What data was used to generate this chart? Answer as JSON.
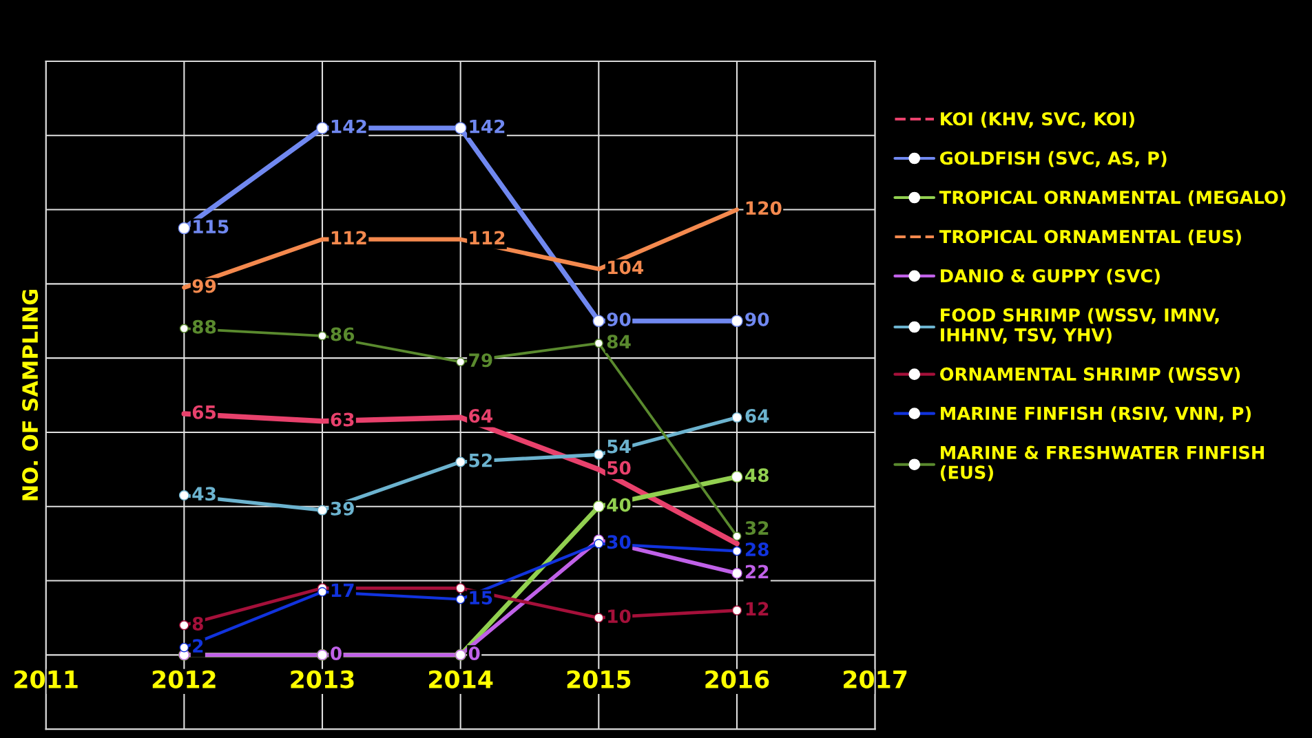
{
  "chart_data": {
    "type": "line",
    "ylabel": "NO. OF SAMPLING",
    "x": [
      2012,
      2013,
      2014,
      2015,
      2016
    ],
    "xlim": [
      2011,
      2017
    ],
    "xticks": [
      2011,
      2012,
      2013,
      2014,
      2015,
      2016,
      2017
    ],
    "ylim": [
      -20,
      160
    ],
    "yticks": [
      {
        "value": -20,
        "label": null
      },
      {
        "value": 0,
        "label": null
      },
      {
        "value": 20,
        "label": null
      },
      {
        "value": 40,
        "label": null
      },
      {
        "value": 60,
        "label": null
      },
      {
        "value": 80,
        "label": null
      },
      {
        "value": 100,
        "label": null
      },
      {
        "value": 120,
        "label": null
      },
      {
        "value": 140,
        "label": null
      },
      {
        "value": 160,
        "label": null
      }
    ],
    "tick_labels": "x",
    "grid": true,
    "legend": "right",
    "series": [
      {
        "name": "KOI (KHV, SVC, KOI)",
        "color": "#e8416c",
        "marker": "none",
        "values": [
          65,
          63,
          64,
          50,
          30
        ],
        "value_labels": [
          "65",
          "63",
          "64",
          "50",
          null
        ]
      },
      {
        "name": "GOLDFISH (SVC, AS, P)",
        "color": "#7088f0",
        "marker": "circle",
        "values": [
          115,
          142,
          142,
          90,
          90
        ],
        "value_labels": [
          "115",
          "142",
          "142",
          "90",
          "90"
        ]
      },
      {
        "name": "TROPICAL ORNAMENTAL (MEGALO)",
        "color": "#92d050",
        "marker": "circle",
        "values": [
          0,
          0,
          0,
          40,
          48
        ],
        "value_labels": [
          null,
          null,
          null,
          "40",
          "48"
        ]
      },
      {
        "name": "TROPICAL ORNAMENTAL (EUS)",
        "color": "#f4894e",
        "marker": "none",
        "values": [
          99,
          112,
          112,
          104,
          120
        ],
        "value_labels": [
          "99",
          "112",
          "112",
          "104",
          "120"
        ]
      },
      {
        "name": "DANIO & GUPPY (SVC)",
        "color": "#c061e8",
        "marker": "circle",
        "values": [
          0,
          0,
          0,
          31,
          22
        ],
        "value_labels": [
          null,
          "0",
          "0",
          null,
          "22"
        ]
      },
      {
        "name": "FOOD SHRIMP (WSSV, IMNV,\nIHHNV, TSV, YHV)",
        "color": "#6cb3cf",
        "marker": "circle",
        "values": [
          43,
          39,
          52,
          54,
          64
        ],
        "value_labels": [
          "43",
          "39",
          "52",
          "54",
          "64"
        ]
      },
      {
        "name": "ORNAMENTAL SHRIMP (WSSV)",
        "color": "#a5103a",
        "marker": "circle",
        "values": [
          8,
          18,
          18,
          10,
          12
        ],
        "value_labels": [
          "8",
          null,
          null,
          "10",
          "12"
        ]
      },
      {
        "name": "MARINE FINFISH (RSIV, VNN, P)",
        "color": "#1133dd",
        "marker": "circle",
        "values": [
          2,
          17,
          15,
          30,
          28
        ],
        "value_labels": [
          "2",
          "17",
          "15",
          "30",
          "28"
        ]
      },
      {
        "name": "MARINE & FRESHWATER FINFISH\n(EUS)",
        "color": "#5a8a2e",
        "marker": "circle",
        "values": [
          88,
          86,
          79,
          84,
          32
        ],
        "value_labels": [
          "88",
          "86",
          "79",
          "84",
          "32"
        ]
      }
    ]
  }
}
